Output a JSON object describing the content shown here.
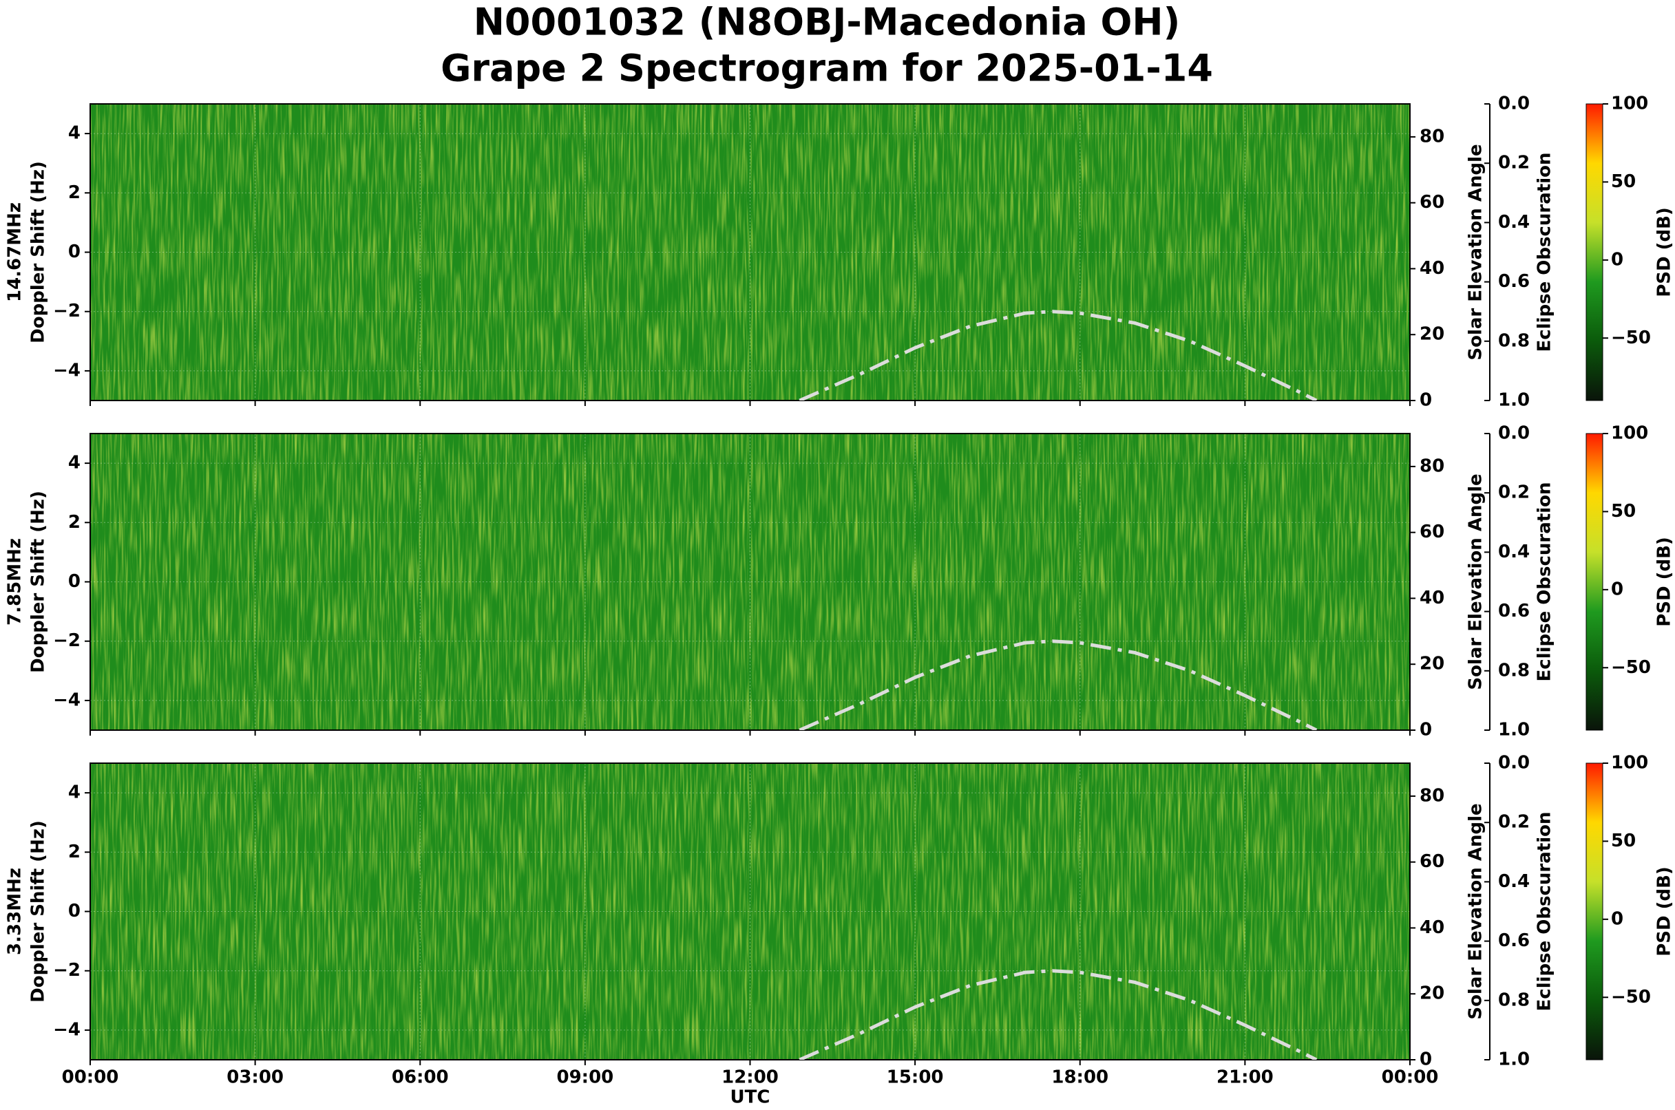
{
  "chart_data": {
    "type": "spectrogram",
    "title": "N0001032 (N8OBJ-Macedonia OH)",
    "subtitle": "Grape 2 Spectrogram for 2025-01-14",
    "xlabel": "UTC",
    "xlim": [
      0,
      24
    ],
    "xticks": [
      {
        "value": 0,
        "label": "00:00"
      },
      {
        "value": 3,
        "label": "03:00"
      },
      {
        "value": 6,
        "label": "06:00"
      },
      {
        "value": 9,
        "label": "09:00"
      },
      {
        "value": 12,
        "label": "12:00"
      },
      {
        "value": 15,
        "label": "15:00"
      },
      {
        "value": 18,
        "label": "18:00"
      },
      {
        "value": 21,
        "label": "21:00"
      },
      {
        "value": 24,
        "label": "00:00"
      }
    ],
    "ylabel": "Doppler Shift (Hz)",
    "ylim": [
      -5,
      5
    ],
    "yticks": [
      {
        "value": -4,
        "label": "−4"
      },
      {
        "value": -2,
        "label": "−2"
      },
      0,
      2,
      4
    ],
    "grid": true,
    "y2label": "Solar Elevation Angle",
    "y2lim": [
      0,
      90
    ],
    "y2ticks": [
      0,
      20,
      40,
      60,
      80
    ],
    "eclipse_axis": {
      "label": "Eclipse Obscuration",
      "lim": [
        0,
        1
      ],
      "inverted": true,
      "ticks": [
        {
          "value": 0,
          "label": "0.0"
        },
        {
          "value": 0.2,
          "label": "0.2"
        },
        {
          "value": 0.4,
          "label": "0.4"
        },
        {
          "value": 0.6,
          "label": "0.6"
        },
        {
          "value": 0.8,
          "label": "0.8"
        },
        {
          "value": 1,
          "label": "1.0"
        }
      ]
    },
    "colorbar": {
      "label": "PSD (dB)",
      "lim": [
        -90,
        100
      ],
      "ticks": [
        {
          "value": -50,
          "label": "−50"
        },
        0,
        50,
        100
      ],
      "colors": [
        "#0a140a",
        "#0b5a0b",
        "#1f9a1f",
        "#c6e02a",
        "#ffd800",
        "#ff1a00"
      ]
    },
    "solar_elevation": {
      "name": "Solar Elevation Angle",
      "color": "#dcdcdc",
      "axis": "y2",
      "x": [
        12.9,
        14,
        15,
        16,
        17,
        17.5,
        18,
        19,
        20,
        21,
        22,
        22.3
      ],
      "values": [
        0,
        8,
        16,
        22.5,
        26.5,
        27,
        26.5,
        23.5,
        18,
        10.5,
        2.5,
        0
      ]
    },
    "panels": [
      {
        "name": "14.67MHz"
      },
      {
        "name": "7.85MHz"
      },
      {
        "name": "3.33MHz"
      }
    ]
  }
}
